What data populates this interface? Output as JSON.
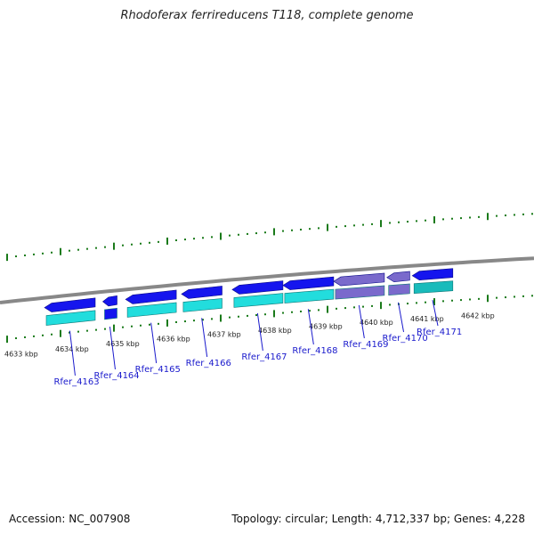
{
  "title": "Rhodoferax ferrireducens T118, complete genome",
  "footer": {
    "accession": "Accession: NC_007908",
    "summary": "Topology: circular; Length: 4,712,337 bp; Genes: 4,228"
  },
  "colors": {
    "backbone": "#888888",
    "tick": "#1a7a1a",
    "cds_forward": "#1515ee",
    "rna_strip": "#22dddd",
    "pseudo": "#7a6acc",
    "pseudo_strip": "#19bbbb",
    "label": "#1a1acc"
  },
  "kbp_labels": [
    "4633 kbp",
    "4634 kbp",
    "4635 kbp",
    "4636 kbp",
    "4637 kbp",
    "4638 kbp",
    "4639 kbp",
    "4640 kbp",
    "4641 kbp",
    "4642 kbp"
  ],
  "genes": [
    {
      "name": "Rfer_4163",
      "start": 4633.35,
      "end": 4634.35,
      "dir": "left",
      "strip": "cyan"
    },
    {
      "name": "Rfer_4164",
      "start": 4634.5,
      "end": 4634.78,
      "dir": "left",
      "strip": "blue"
    },
    {
      "name": "Rfer_4165",
      "start": 4634.95,
      "end": 4635.95,
      "dir": "left",
      "strip": "cyan"
    },
    {
      "name": "Rfer_4166",
      "start": 4636.05,
      "end": 4636.85,
      "dir": "left",
      "strip": "cyan"
    },
    {
      "name": "Rfer_4167",
      "start": 4637.05,
      "end": 4638.05,
      "dir": "left",
      "strip": "cyan"
    },
    {
      "name": "Rfer_4168",
      "start": 4638.05,
      "end": 4639.05,
      "dir": "left",
      "strip": "cyan"
    },
    {
      "name": "Rfer_4169",
      "start": 4639.05,
      "end": 4640.05,
      "dir": "left",
      "strip": "pseudo"
    },
    {
      "name": "Rfer_4170",
      "start": 4640.1,
      "end": 4640.55,
      "dir": "left",
      "strip": "pseudo"
    },
    {
      "name": "Rfer_4171",
      "start": 4640.6,
      "end": 4641.4,
      "dir": "left",
      "strip": "teal"
    }
  ]
}
